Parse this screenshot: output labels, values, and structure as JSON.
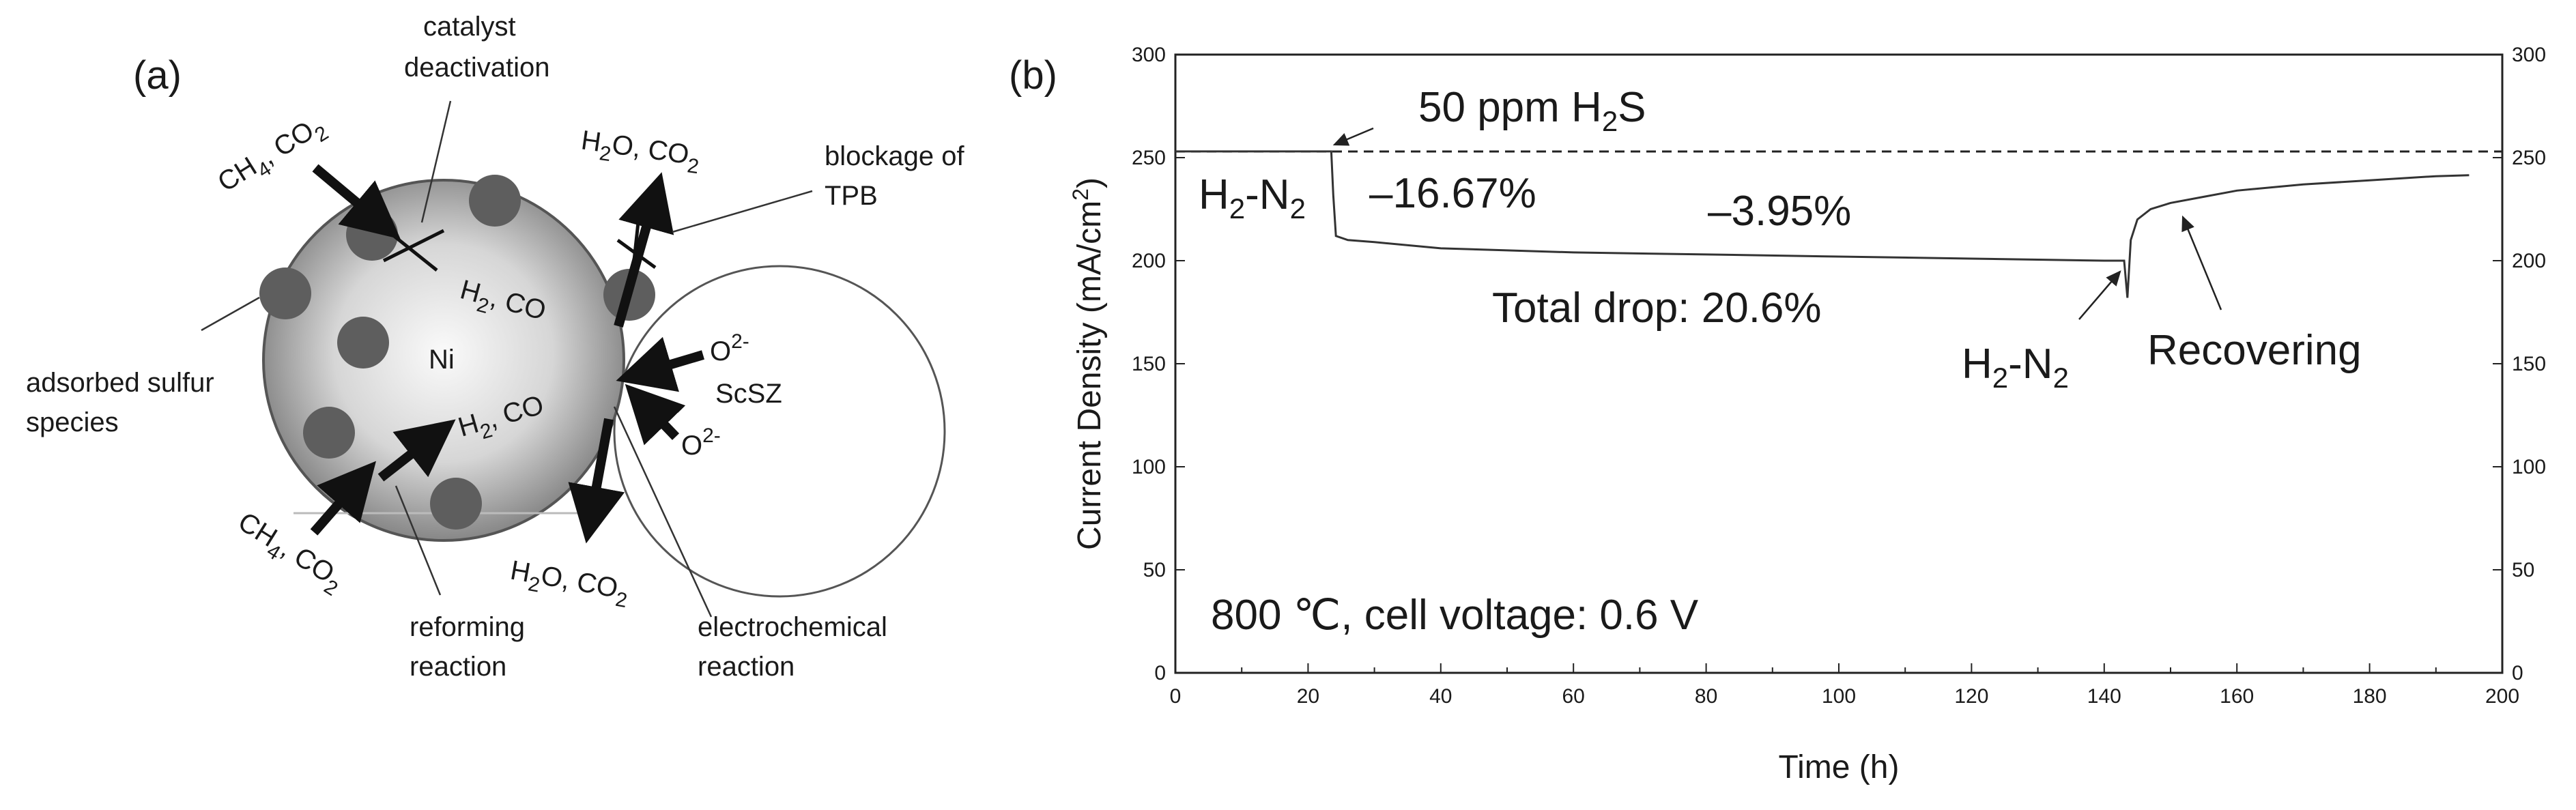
{
  "panel_a": {
    "label": "(a)",
    "catalyst_deactivation": [
      "catalyst",
      "deactivation"
    ],
    "ch4_co2_top": {
      "a": "CH",
      "a_sub": "4",
      "b": ", CO",
      "b_sub": "2"
    },
    "ch4_co2_bottom": {
      "a": "CH",
      "a_sub": "4",
      "b": ", CO",
      "b_sub": "2"
    },
    "h2o_co2_top": {
      "a": "H",
      "a_sub": "2",
      "b": "O, CO",
      "b_sub": "2"
    },
    "h2o_co2_bottom": {
      "a": "H",
      "a_sub": "2",
      "b": "O, CO",
      "b_sub": "2"
    },
    "h2_co_upper": {
      "a": "H",
      "a_sub": "2",
      "b": ", CO"
    },
    "h2_co_lower": {
      "a": "H",
      "a_sub": "2",
      "b": ", CO"
    },
    "blockage": [
      "blockage of",
      "TPB"
    ],
    "ni": "Ni",
    "scsz": "ScSZ",
    "o2_upper": {
      "a": "O",
      "sup": "2-"
    },
    "o2_lower": {
      "a": "O",
      "sup": "2-"
    },
    "adsorbed": [
      "adsorbed sulfur",
      "species"
    ],
    "reforming": [
      "reforming",
      "reaction"
    ],
    "electrochemical": [
      "electrochemical",
      "reaction"
    ],
    "colors": {
      "particle_light": "#f4f4f4",
      "particle_dark": "#7a7a7a",
      "sulfur": "#5e5e5e"
    }
  },
  "chart_data": {
    "label": "(b)",
    "type": "line",
    "xlabel": "Time (h)",
    "ylabel": {
      "a": "Current Density (mA/cm",
      "sup": "2",
      "b": ")"
    },
    "xlim": [
      0,
      200
    ],
    "ylim": [
      0,
      300
    ],
    "xticks": [
      0,
      20,
      40,
      60,
      80,
      100,
      120,
      140,
      160,
      180,
      200
    ],
    "yticks": [
      0,
      50,
      100,
      150,
      200,
      250,
      300
    ],
    "right_axis": true,
    "grid": false,
    "reference_line": {
      "y": 253,
      "style": "dashed"
    },
    "series": [
      {
        "x": [
          0,
          23.5,
          23.8,
          24.2,
          26,
          30,
          40,
          50,
          60,
          80,
          100,
          120,
          130,
          140,
          143,
          143.5,
          144,
          145,
          147,
          150,
          155,
          160,
          170,
          180,
          190,
          195
        ],
        "y": [
          253,
          253,
          232,
          212,
          210,
          209,
          206,
          205,
          204,
          203,
          202,
          201,
          200.5,
          200,
          200,
          182,
          210,
          220,
          225,
          228,
          231,
          234,
          237,
          239,
          241,
          241.5
        ]
      }
    ],
    "annotations": {
      "h2s": {
        "a": "50 ppm H",
        "sub": "2",
        "b": "S"
      },
      "h2n2_left": {
        "a": "H",
        "sub1": "2",
        "b": "-N",
        "sub2": "2"
      },
      "drop1": "–16.67%",
      "drop2": "–3.95%",
      "total": "Total drop: 20.6%",
      "h2n2_right": {
        "a": "H",
        "sub1": "2",
        "b": "-N",
        "sub2": "2"
      },
      "recovering": "Recovering",
      "conditions": {
        "a": "800 ",
        "deg": "℃",
        "b": ", cell voltage: 0.6 V"
      }
    }
  }
}
